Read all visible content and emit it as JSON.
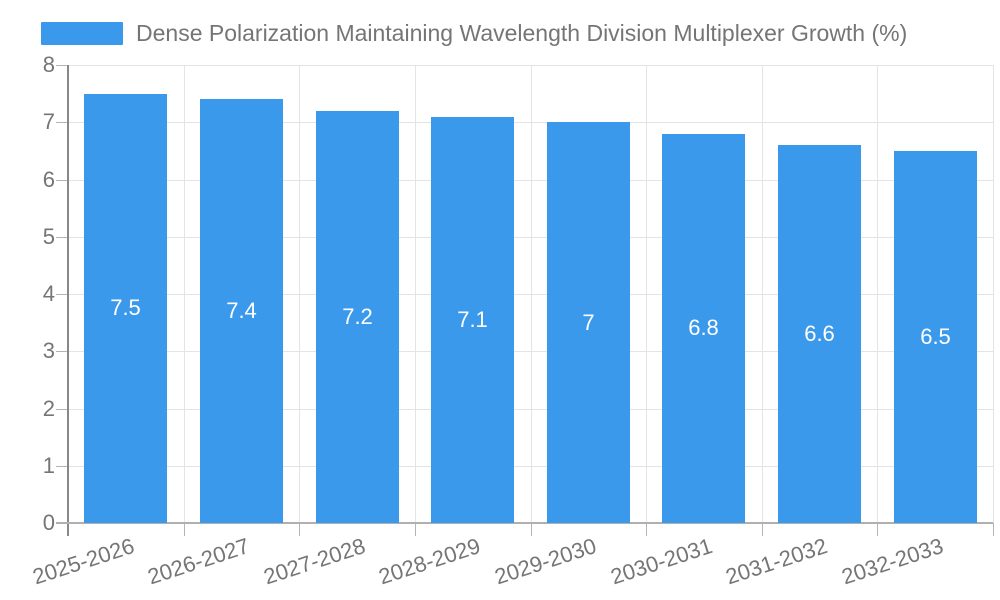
{
  "chart_data": {
    "type": "bar",
    "title": "Dense Polarization Maintaining Wavelength Division Multiplexer Growth (%)",
    "categories": [
      "2025-2026",
      "2026-2027",
      "2027-2028",
      "2028-2029",
      "2029-2030",
      "2030-2031",
      "2031-2032",
      "2032-2033"
    ],
    "values": [
      7.5,
      7.4,
      7.2,
      7.1,
      7,
      6.8,
      6.6,
      6.5
    ],
    "bar_labels": [
      "7.5",
      "7.4",
      "7.2",
      "7.1",
      "7",
      "6.8",
      "6.6",
      "6.5"
    ],
    "xlabel": "",
    "ylabel": "",
    "ylim": [
      0,
      8
    ],
    "ytick_labels": [
      "0",
      "1",
      "2",
      "3",
      "4",
      "5",
      "6",
      "7",
      "8"
    ],
    "grid": true,
    "legend_position": "top-left",
    "x_label_rotation_deg": -18,
    "colors": {
      "bar": "#3b99ec",
      "grid": "#e4e4e4",
      "axis_line": "#888888",
      "baseline": "#b0b0b0",
      "tick": "#b4b4b4",
      "label_text": "#757575",
      "bar_label_text": "#ffffff",
      "background": "#ffffff"
    }
  }
}
